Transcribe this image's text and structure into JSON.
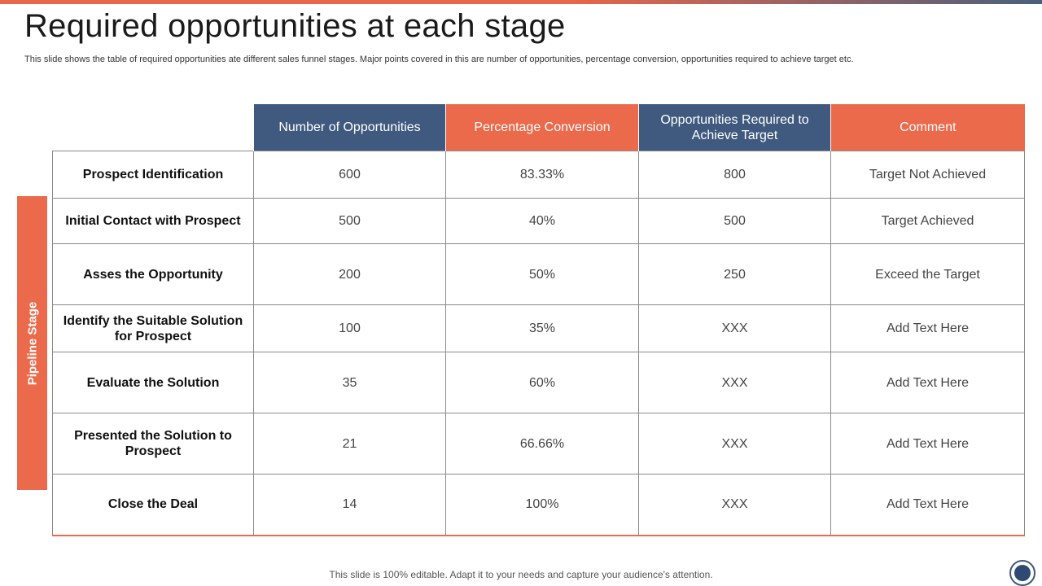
{
  "title": "Required opportunities at each stage",
  "subtitle": "This slide shows the table of required opportunities ate different sales funnel stages. Major points covered in this are number of opportunities, percentage conversion, opportunities required to achieve target etc.",
  "side_label": "Pipeline Stage",
  "headers": [
    "Number of Opportunities",
    "Percentage Conversion",
    "Opportunities Required to Achieve Target",
    "Comment"
  ],
  "rows": [
    {
      "stage": "Prospect Identification",
      "number": "600",
      "conversion": "83.33%",
      "required": "800",
      "comment": "Target Not Achieved"
    },
    {
      "stage": "Initial Contact with Prospect",
      "number": "500",
      "conversion": "40%",
      "required": "500",
      "comment": "Target Achieved"
    },
    {
      "stage": "Asses the Opportunity",
      "number": "200",
      "conversion": "50%",
      "required": "250",
      "comment": "Exceed the Target"
    },
    {
      "stage": "Identify the Suitable Solution for Prospect",
      "number": "100",
      "conversion": "35%",
      "required": "XXX",
      "comment": "Add Text Here"
    },
    {
      "stage": "Evaluate the Solution",
      "number": "35",
      "conversion": "60%",
      "required": "XXX",
      "comment": "Add Text Here"
    },
    {
      "stage": "Presented the Solution to Prospect",
      "number": "21",
      "conversion": "66.66%",
      "required": "XXX",
      "comment": "Add Text Here"
    },
    {
      "stage": "Close the Deal",
      "number": "14",
      "conversion": "100%",
      "required": "XXX",
      "comment": "Add Text Here"
    }
  ],
  "footer": "This slide is 100% editable. Adapt it to your needs and capture your audience's attention.",
  "colors": {
    "accent_orange": "#ec6a4c",
    "accent_blue": "#3f5a7e"
  },
  "icons": {
    "corner": "circle-logo-icon"
  }
}
